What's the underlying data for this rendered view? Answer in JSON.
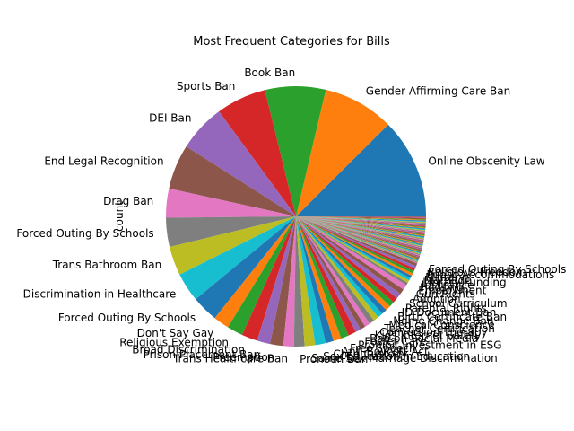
{
  "chart_data": {
    "type": "pie",
    "title": "Most Frequent Categories for Bills",
    "ylabel": "count",
    "start_angle_deg": 0,
    "direction": "counterclockwise",
    "palette": [
      "#1f77b4",
      "#ff7f0e",
      "#2ca02c",
      "#d62728",
      "#9467bd",
      "#8c564b",
      "#e377c2",
      "#7f7f7f",
      "#bcbd22",
      "#17becf"
    ],
    "slices": [
      {
        "label": "Online Obscenity Law",
        "value": 38
      },
      {
        "label": "Gender Affirming Care Ban",
        "value": 27
      },
      {
        "label": "Book Ban",
        "value": 23
      },
      {
        "label": "Sports Ban",
        "value": 19
      },
      {
        "label": "DEI Ban",
        "value": 18
      },
      {
        "label": "End Legal Recognition",
        "value": 17
      },
      {
        "label": "Drag Ban",
        "value": 11
      },
      {
        "label": "Forced Outing By Schools",
        "value": 11
      },
      {
        "label": "Trans Bathroom Ban",
        "value": 11
      },
      {
        "label": "Discrimination in Healthcare",
        "value": 11
      },
      {
        "label": "Forced Outing By Schools",
        "value": 10
      },
      {
        "label": "Don't Say Gay",
        "value": 6
      },
      {
        "label": "Religious Exemption",
        "value": 6
      },
      {
        "label": "Broad Discrimination",
        "value": 6
      },
      {
        "label": "Prison Placement Ban",
        "value": 5
      },
      {
        "label": "Preemption",
        "value": 5
      },
      {
        "label": "Trans Healthcare Ban",
        "value": 4
      },
      {
        "label": "Pronoun Ban",
        "value": 4
      },
      {
        "label": "Same-Sex Marriage Discrimination",
        "value": 4
      },
      {
        "label": "Sex Education in Education",
        "value": 4
      },
      {
        "label": "Child Custody",
        "value": 3
      },
      {
        "label": "Anti-Boycott Act",
        "value": 3
      },
      {
        "label": "Free Speech",
        "value": 3
      },
      {
        "label": "Prohibit Investment in ESG",
        "value": 3
      },
      {
        "label": "Foster Care",
        "value": 2
      },
      {
        "label": "Ban on Social Media",
        "value": 2
      },
      {
        "label": "Kids Internet Safety",
        "value": 2
      },
      {
        "label": "Conversion Therapy",
        "value": 2
      },
      {
        "label": "Teacher Certification",
        "value": 2
      },
      {
        "label": "Medical Conscience",
        "value": 2
      },
      {
        "label": "Name Change Ban",
        "value": 2
      },
      {
        "label": "Birth Certificate Ban",
        "value": 2
      },
      {
        "label": "ID Document Ban",
        "value": 2
      },
      {
        "label": "Parental Rights",
        "value": 2
      },
      {
        "label": "School Curriculum",
        "value": 2
      },
      {
        "label": "Adoption",
        "value": 2
      },
      {
        "label": "Gun Rights",
        "value": 2
      },
      {
        "label": "Employment",
        "value": 1
      },
      {
        "label": "Housing",
        "value": 1
      },
      {
        "label": "Insurance",
        "value": 1
      },
      {
        "label": "Library Funding",
        "value": 1
      },
      {
        "label": "Marriage",
        "value": 1
      },
      {
        "label": "Military",
        "value": 1
      },
      {
        "label": "Public Accommodations",
        "value": 1
      },
      {
        "label": "Religious Freedom",
        "value": 1
      },
      {
        "label": "Forced Outing By Schools",
        "value": 1
      }
    ],
    "tail": {
      "count": 60,
      "value_each": 0.3
    }
  }
}
